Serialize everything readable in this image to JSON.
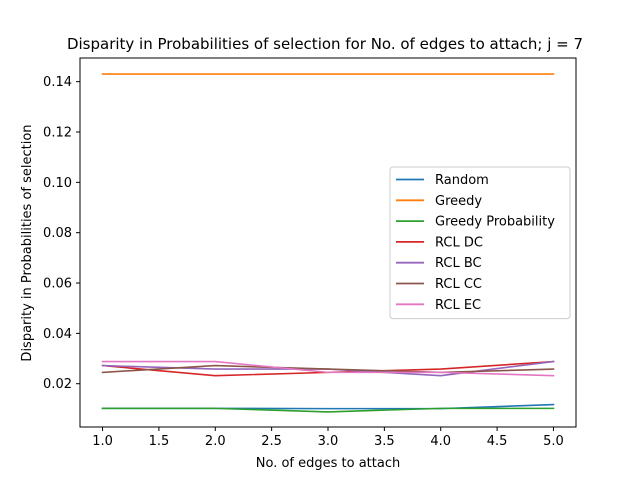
{
  "chart_data": {
    "type": "line",
    "title": "Disparity in Probabilities of selection for No. of edges to attach; j = 7",
    "xlabel": "No. of edges to attach",
    "ylabel": "Disparity in Probabilities of selection",
    "xlim": [
      0.8,
      5.2
    ],
    "ylim": [
      0.0028,
      0.1494
    ],
    "x": [
      1,
      2,
      3,
      4,
      5
    ],
    "xticks": [
      1.0,
      1.5,
      2.0,
      2.5,
      3.0,
      3.5,
      4.0,
      4.5,
      5.0
    ],
    "xtick_labels": [
      "1.0",
      "1.5",
      "2.0",
      "2.5",
      "3.0",
      "3.5",
      "4.0",
      "4.5",
      "5.0"
    ],
    "yticks": [
      0.02,
      0.04,
      0.06,
      0.08,
      0.1,
      0.12,
      0.14
    ],
    "ytick_labels": [
      "0.02",
      "0.04",
      "0.06",
      "0.08",
      "0.10",
      "0.12",
      "0.14"
    ],
    "grid": false,
    "legend_position": "center-right",
    "series": [
      {
        "name": "Random",
        "color": "#1f77b4",
        "values": [
          0.0102,
          0.0102,
          0.0101,
          0.0101,
          0.0117
        ]
      },
      {
        "name": "Greedy",
        "color": "#ff7f0e",
        "values": [
          0.143,
          0.143,
          0.143,
          0.143,
          0.143
        ]
      },
      {
        "name": "Greedy Probability",
        "color": "#2ca02c",
        "values": [
          0.0102,
          0.0102,
          0.0088,
          0.0102,
          0.0102
        ]
      },
      {
        "name": "RCL DC",
        "color": "#d62728",
        "values": [
          0.0272,
          0.0232,
          0.0245,
          0.0258,
          0.0288
        ]
      },
      {
        "name": "RCL BC",
        "color": "#9467bd",
        "values": [
          0.0272,
          0.0258,
          0.0258,
          0.0232,
          0.0288
        ]
      },
      {
        "name": "RCL CC",
        "color": "#8c564b",
        "values": [
          0.0245,
          0.0272,
          0.0258,
          0.0245,
          0.0258
        ]
      },
      {
        "name": "RCL EC",
        "color": "#e377c2",
        "values": [
          0.0288,
          0.0288,
          0.0245,
          0.0245,
          0.0232
        ]
      }
    ]
  }
}
